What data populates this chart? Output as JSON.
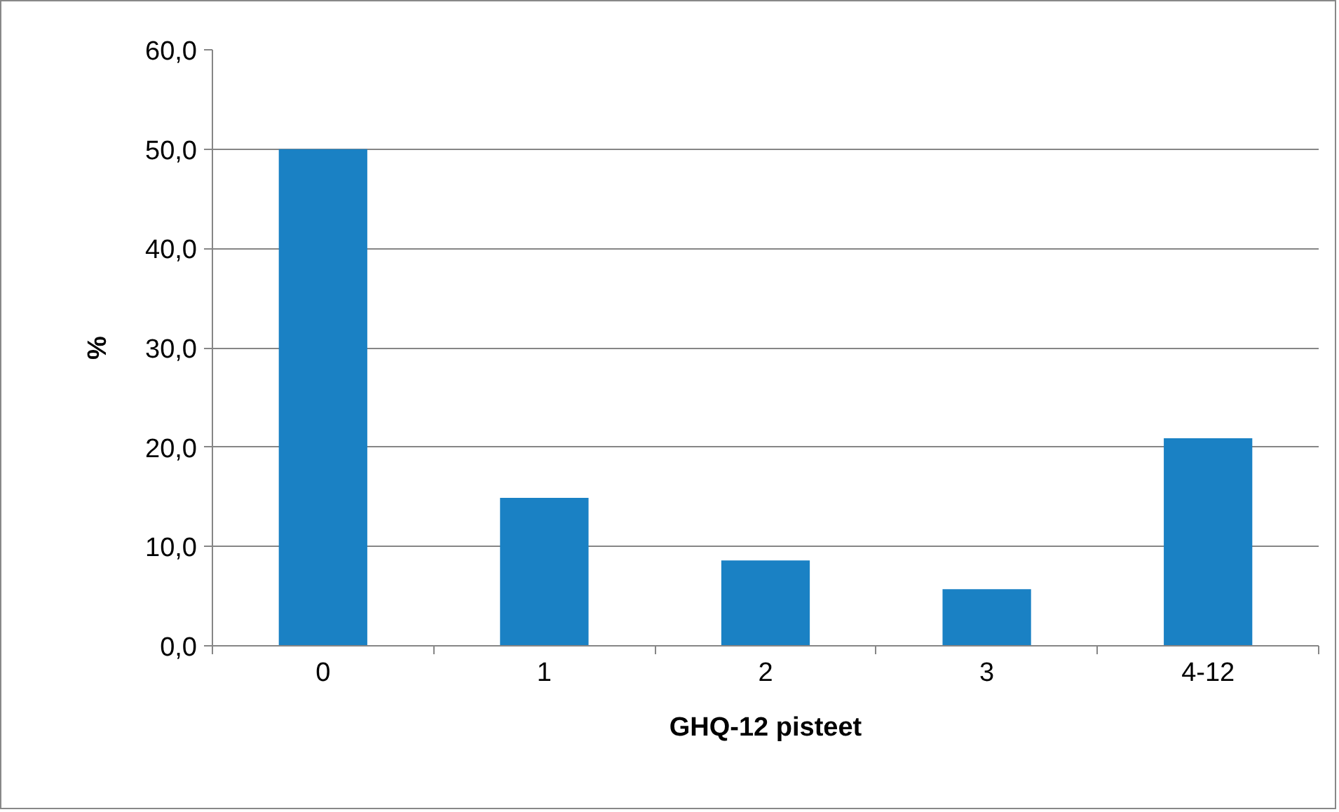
{
  "chart_data": {
    "type": "bar",
    "xlabel": "GHQ-12 pisteet",
    "ylabel": "%",
    "categories": [
      "0",
      "1",
      "2",
      "3",
      "4-12"
    ],
    "values": [
      50.0,
      14.9,
      8.6,
      5.7,
      20.9
    ],
    "color": "#1a81c4",
    "ylim": [
      0,
      60
    ],
    "yticks": [
      {
        "value": 0,
        "label": "0,0"
      },
      {
        "value": 10,
        "label": "10,0"
      },
      {
        "value": 20,
        "label": "20,0"
      },
      {
        "value": 30,
        "label": "30,0"
      },
      {
        "value": 40,
        "label": "40,0"
      },
      {
        "value": 50,
        "label": "50,0"
      },
      {
        "value": 60,
        "label": "60,0"
      }
    ],
    "grid": "y"
  }
}
